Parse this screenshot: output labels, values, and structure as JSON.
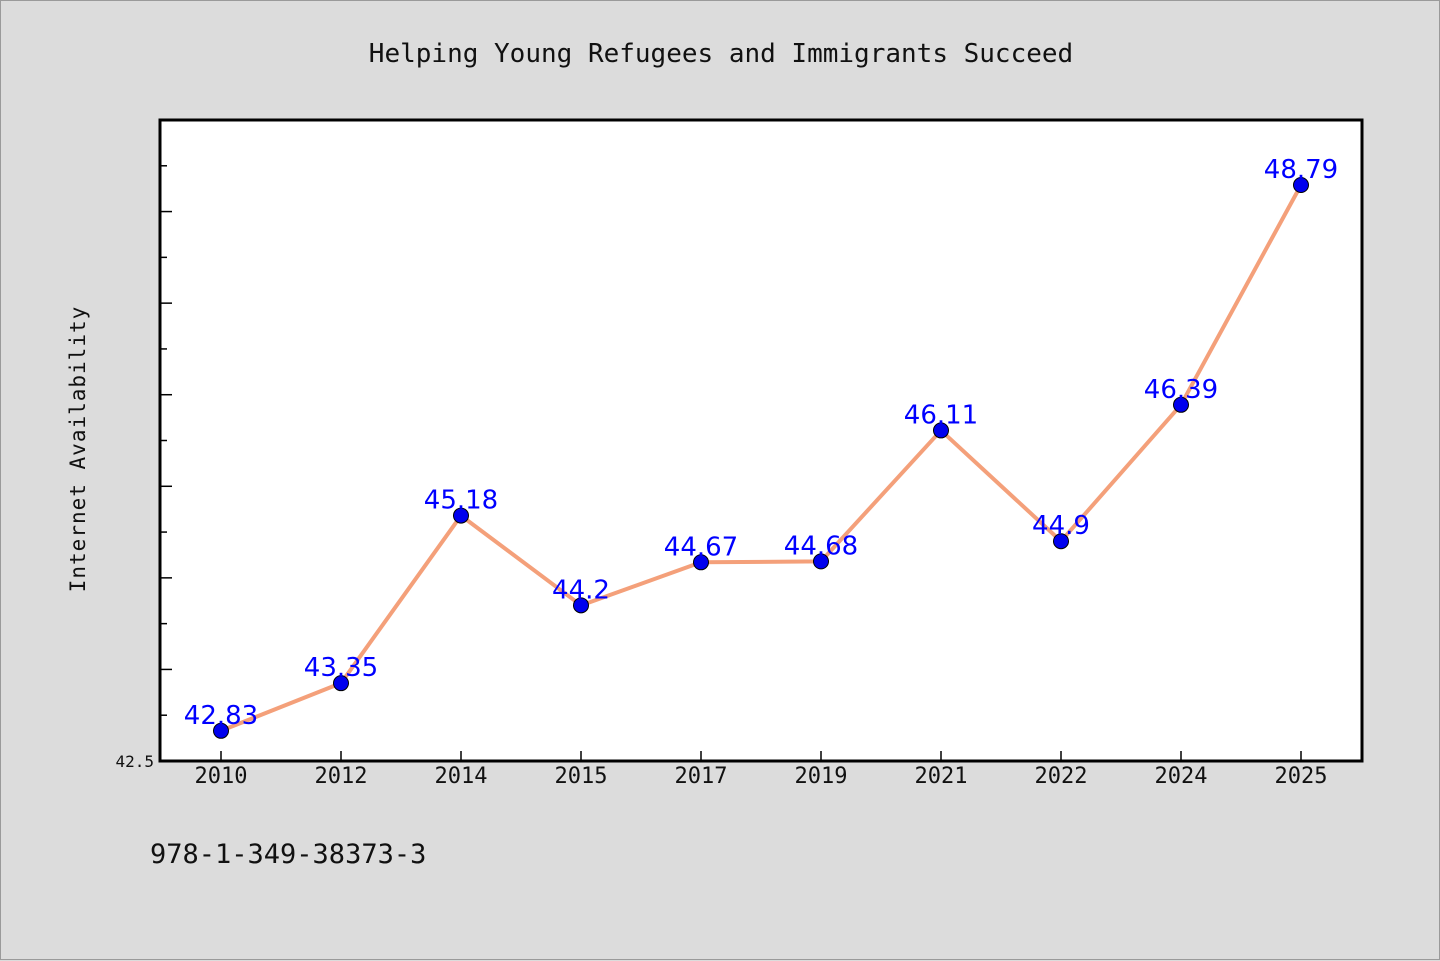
{
  "chart_data": {
    "type": "line",
    "title": "Helping Young Refugees and Immigrants Succeed",
    "xlabel": "",
    "ylabel": "Internet Availability",
    "categories": [
      "2010",
      "2012",
      "2014",
      "2015",
      "2017",
      "2019",
      "2021",
      "2022",
      "2024",
      "2025"
    ],
    "series": [
      {
        "values": [
          42.83,
          43.35,
          45.18,
          44.2,
          44.67,
          44.68,
          46.11,
          44.9,
          46.39,
          48.79
        ],
        "labels": [
          "42.83",
          "43.35",
          "45.18",
          "44.2",
          "44.67",
          "44.68",
          "46.11",
          "44.9",
          "46.39",
          "48.79"
        ]
      }
    ],
    "ylim": [
      42.5,
      49.5
    ],
    "yticks_labeled": [
      "42.5"
    ],
    "grid": false,
    "legend": "none",
    "colors": {
      "line": "#f4a07a",
      "marker": "#0000ee",
      "data_label": "#0000ff",
      "plot_background": "#ffffff",
      "page_background": "#dcdcdc"
    }
  },
  "footer": {
    "isbn": "978-1-349-38373-3"
  }
}
